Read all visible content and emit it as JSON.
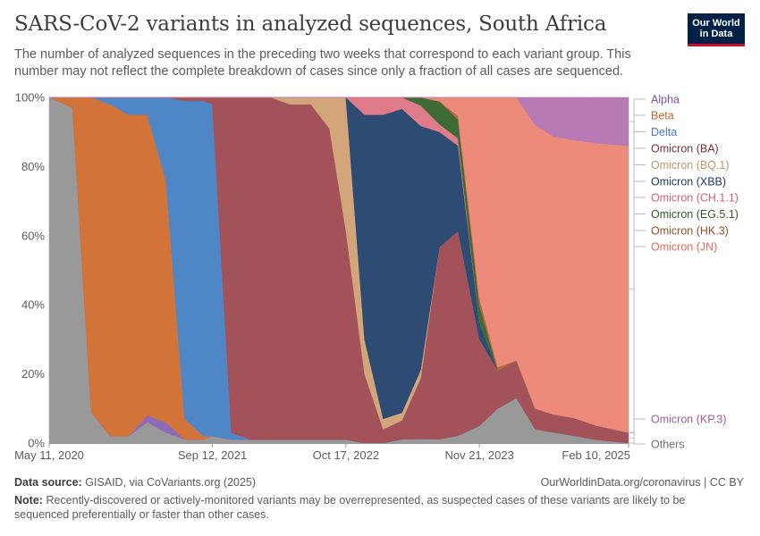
{
  "header": {
    "title": "SARS-CoV-2 variants in analyzed sequences, South Africa",
    "subtitle": "The number of analyzed sequences in the preceding two weeks that correspond to each variant group. This number may not reflect the complete breakdown of cases since only a fraction of all cases are sequenced.",
    "logo_line1": "Our World",
    "logo_line2": "in Data"
  },
  "footer": {
    "source_label": "Data source:",
    "source_text": "GISAID, via CoVariants.org (2025)",
    "url": "OurWorldinData.org/coronavirus | CC BY",
    "note_label": "Note:",
    "note_text": "Recently-discovered or actively-monitored variants may be overrepresented, as suspected cases of these variants are likely to be sequenced preferentially or faster than other cases."
  },
  "chart_data": {
    "type": "area",
    "stacked": "percent",
    "title": "SARS-CoV-2 variants in analyzed sequences, South Africa",
    "ylim": [
      0,
      100
    ],
    "y_ticks": [
      "0%",
      "20%",
      "40%",
      "60%",
      "80%",
      "100%"
    ],
    "x_ticks": [
      "May 11, 2020",
      "Sep 12, 2021",
      "Oct 17, 2022",
      "Nov 21, 2023",
      "Feb 10, 2025"
    ],
    "grid": true,
    "legend_position": "right",
    "x": [
      "2020-05-11",
      "2020-07-20",
      "2020-09-14",
      "2020-11-09",
      "2021-01-04",
      "2021-03-01",
      "2021-04-26",
      "2021-06-21",
      "2021-08-16",
      "2021-09-12",
      "2021-11-08",
      "2022-01-03",
      "2022-03-07",
      "2022-05-02",
      "2022-07-04",
      "2022-08-29",
      "2022-10-17",
      "2022-12-12",
      "2023-02-06",
      "2023-04-03",
      "2023-05-29",
      "2023-07-24",
      "2023-09-18",
      "2023-11-21",
      "2024-01-15",
      "2024-03-11",
      "2024-05-06",
      "2024-07-01",
      "2024-09-02",
      "2024-11-04",
      "2025-02-10"
    ],
    "series": [
      {
        "name": "Others",
        "color": "#999999",
        "values": [
          100,
          97,
          9,
          2,
          2,
          6,
          3,
          1,
          1,
          2,
          1,
          1,
          1,
          1,
          1,
          1,
          1,
          0,
          0,
          1,
          1,
          1,
          2,
          5,
          10,
          12,
          4,
          3,
          2,
          1,
          0
        ]
      },
      {
        "name": "Alpha",
        "color": "#8d6bb8",
        "values": [
          0,
          0,
          0,
          0,
          0,
          2,
          3,
          0,
          0,
          0,
          0,
          0,
          0,
          0,
          0,
          0,
          0,
          0,
          0,
          0,
          0,
          0,
          0,
          0,
          0,
          0,
          0,
          0,
          0,
          0,
          0
        ]
      },
      {
        "name": "Beta",
        "color": "#d2733a",
        "values": [
          0,
          3,
          91,
          96,
          93,
          87,
          70,
          6,
          1,
          0,
          0,
          0,
          0,
          0,
          0,
          0,
          0,
          0,
          0,
          0,
          0,
          0,
          0,
          0,
          0,
          0,
          0,
          0,
          0,
          0,
          0
        ]
      },
      {
        "name": "Delta",
        "color": "#4f86c6",
        "values": [
          0,
          0,
          0,
          2,
          5,
          5,
          24,
          92,
          97,
          96,
          2,
          0,
          0,
          0,
          0,
          0,
          0,
          0,
          0,
          0,
          0,
          0,
          0,
          0,
          0,
          0,
          0,
          0,
          0,
          0,
          0
        ]
      },
      {
        "name": "Omicron (BA)",
        "color": "#a3525a",
        "values": [
          0,
          0,
          0,
          0,
          0,
          0,
          0,
          1,
          1,
          2,
          97,
          99,
          99,
          97,
          97,
          90,
          60,
          20,
          4,
          5,
          15,
          50,
          55,
          25,
          11,
          10,
          6,
          5,
          5,
          4,
          3
        ]
      },
      {
        "name": "Omicron (BQ.1)",
        "color": "#d2a57a",
        "values": [
          0,
          0,
          0,
          0,
          0,
          0,
          0,
          0,
          0,
          0,
          0,
          0,
          0,
          2,
          2,
          9,
          38,
          10,
          3,
          2,
          2,
          0,
          0,
          0,
          0,
          0,
          0,
          0,
          0,
          0,
          0
        ]
      },
      {
        "name": "Omicron (XBB)",
        "color": "#2e4b73",
        "values": [
          0,
          0,
          0,
          0,
          0,
          0,
          0,
          0,
          0,
          0,
          0,
          0,
          0,
          0,
          0,
          0,
          0,
          65,
          88,
          80,
          60,
          30,
          23,
          5,
          0,
          0,
          0,
          0,
          0,
          0,
          0
        ]
      },
      {
        "name": "Omicron (CH.1.1)",
        "color": "#e07b8a",
        "values": [
          0,
          0,
          0,
          0,
          0,
          0,
          0,
          0,
          0,
          0,
          0,
          0,
          0,
          0,
          0,
          0,
          0,
          5,
          5,
          3,
          5,
          2,
          2,
          0,
          0,
          0,
          0,
          0,
          0,
          0,
          0
        ]
      },
      {
        "name": "Omicron (EG.5.1)",
        "color": "#3e6b35",
        "values": [
          0,
          0,
          0,
          0,
          0,
          0,
          0,
          0,
          0,
          0,
          0,
          0,
          0,
          0,
          0,
          0,
          0,
          0,
          0,
          0,
          2,
          6,
          5,
          5,
          0,
          0,
          0,
          0,
          0,
          0,
          0
        ]
      },
      {
        "name": "Omicron (HK.3)",
        "color": "#b36b3a",
        "values": [
          0,
          0,
          0,
          0,
          0,
          0,
          0,
          0,
          0,
          0,
          0,
          0,
          0,
          0,
          0,
          0,
          0,
          0,
          0,
          0,
          0,
          0,
          1,
          2,
          1,
          0,
          0,
          0,
          0,
          0,
          0
        ]
      },
      {
        "name": "Omicron (JN)",
        "color": "#ec8a7c",
        "values": [
          0,
          0,
          0,
          0,
          0,
          0,
          0,
          0,
          0,
          0,
          0,
          0,
          0,
          0,
          0,
          0,
          0,
          0,
          0,
          0,
          0,
          1,
          5,
          58,
          78,
          70,
          82,
          78,
          78,
          80,
          83
        ]
      },
      {
        "name": "Omicron (KP.3)",
        "color": "#b87ab5",
        "values": [
          0,
          0,
          0,
          0,
          0,
          0,
          0,
          0,
          0,
          0,
          0,
          0,
          0,
          0,
          0,
          0,
          0,
          0,
          0,
          0,
          0,
          0,
          0,
          0,
          0,
          0,
          8,
          11,
          12,
          13,
          14
        ]
      }
    ],
    "legend_order": [
      "Alpha",
      "Beta",
      "Delta",
      "Omicron (BA)",
      "Omicron (BQ.1)",
      "Omicron (XBB)",
      "Omicron (CH.1.1)",
      "Omicron (EG.5.1)",
      "Omicron (HK.3)",
      "Omicron (JN)",
      "Omicron (KP.3)",
      "Others"
    ]
  }
}
